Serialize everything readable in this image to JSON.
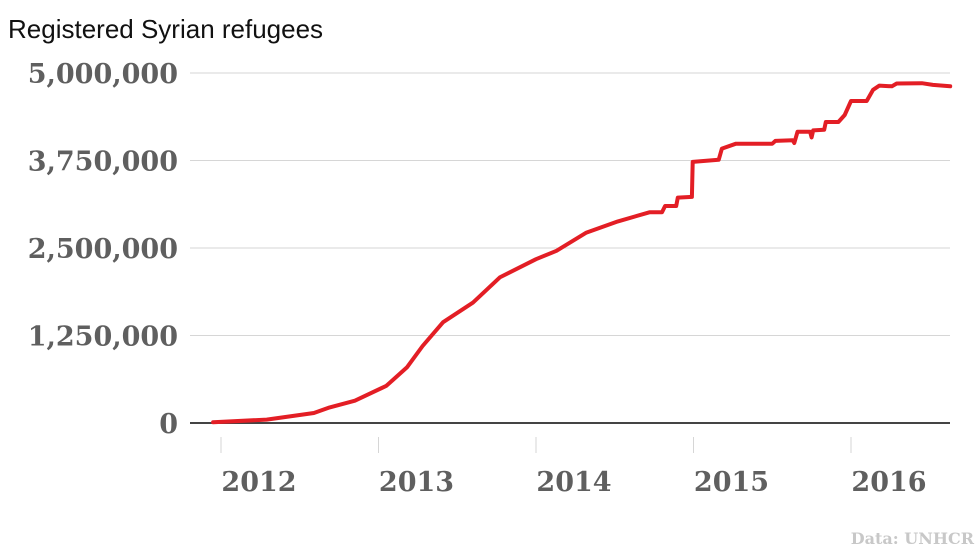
{
  "chart_data": {
    "type": "line",
    "title": "Registered Syrian refugees",
    "source": "Data: UNHCR",
    "xlabel": "",
    "ylabel": "",
    "xlim": [
      2011.9,
      2016.7
    ],
    "ylim": [
      0,
      5000000
    ],
    "grid": true,
    "color": "#e31e25",
    "y_ticks": [
      {
        "value": 0,
        "label": "0"
      },
      {
        "value": 1250000,
        "label": "1,250,000"
      },
      {
        "value": 2500000,
        "label": "2,500,000"
      },
      {
        "value": 3750000,
        "label": "3,750,000"
      },
      {
        "value": 5000000,
        "label": "5,000,000"
      }
    ],
    "x_ticks": [
      {
        "value": 2012,
        "label": "2012"
      },
      {
        "value": 2013,
        "label": "2013"
      },
      {
        "value": 2014,
        "label": "2014"
      },
      {
        "value": 2015,
        "label": "2015"
      },
      {
        "value": 2016,
        "label": "2016"
      }
    ],
    "series": [
      {
        "name": "Registered Syrian refugees",
        "points": [
          [
            2011.95,
            10000
          ],
          [
            2012.29,
            48000
          ],
          [
            2012.59,
            143000
          ],
          [
            2012.69,
            223000
          ],
          [
            2012.85,
            318000
          ],
          [
            2013.05,
            532000
          ],
          [
            2013.18,
            794000
          ],
          [
            2013.28,
            1100000
          ],
          [
            2013.41,
            1440000
          ],
          [
            2013.6,
            1720000
          ],
          [
            2013.77,
            2080000
          ],
          [
            2014.0,
            2340000
          ],
          [
            2014.13,
            2460000
          ],
          [
            2014.32,
            2720000
          ],
          [
            2014.52,
            2880000
          ],
          [
            2014.72,
            3010000
          ],
          [
            2014.8,
            3010000
          ],
          [
            2014.82,
            3100000
          ],
          [
            2014.89,
            3100000
          ],
          [
            2014.9,
            3220000
          ],
          [
            2014.99,
            3230000
          ],
          [
            2014.995,
            3730000
          ],
          [
            2015.16,
            3760000
          ],
          [
            2015.18,
            3920000
          ],
          [
            2015.27,
            3990000
          ],
          [
            2015.5,
            3990000
          ],
          [
            2015.52,
            4030000
          ],
          [
            2015.63,
            4040000
          ],
          [
            2015.64,
            4000000
          ],
          [
            2015.66,
            4160000
          ],
          [
            2015.74,
            4160000
          ],
          [
            2015.75,
            4080000
          ],
          [
            2015.76,
            4180000
          ],
          [
            2015.83,
            4190000
          ],
          [
            2015.84,
            4300000
          ],
          [
            2015.92,
            4300000
          ],
          [
            2015.96,
            4400000
          ],
          [
            2016.0,
            4600000
          ],
          [
            2016.1,
            4600000
          ],
          [
            2016.14,
            4760000
          ],
          [
            2016.18,
            4820000
          ],
          [
            2016.26,
            4810000
          ],
          [
            2016.29,
            4850000
          ],
          [
            2016.45,
            4855000
          ],
          [
            2016.52,
            4830000
          ],
          [
            2016.63,
            4810000
          ]
        ]
      }
    ]
  }
}
